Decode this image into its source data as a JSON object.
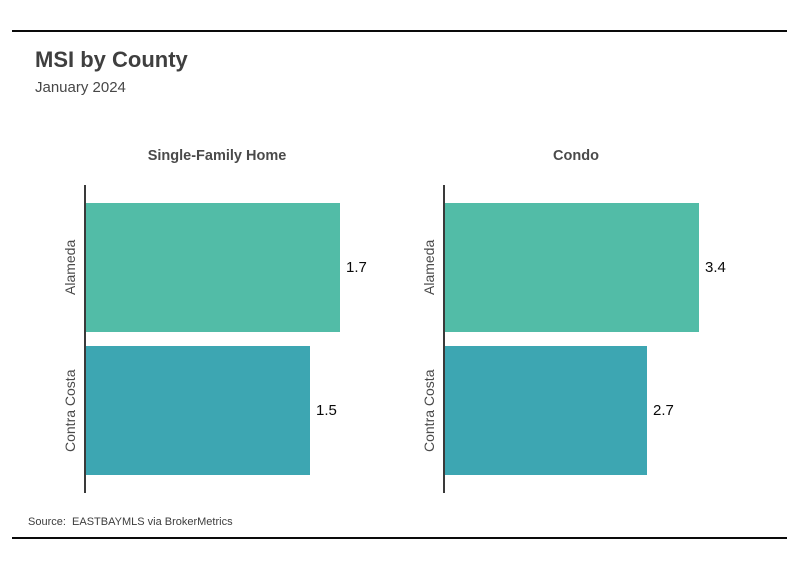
{
  "header": {
    "title": "MSI by County",
    "subtitle": "January 2024"
  },
  "footer": {
    "source": "Source:  EASTBAYMLS via BrokerMetrics"
  },
  "chart_data": {
    "type": "bar",
    "orientation": "horizontal",
    "title": "MSI by County",
    "subtitle": "January 2024",
    "facets": [
      {
        "title": "Single-Family Home",
        "categories": [
          "Alameda",
          "Contra Costa"
        ],
        "values": [
          1.7,
          1.5
        ]
      },
      {
        "title": "Condo",
        "categories": [
          "Alameda",
          "Contra Costa"
        ],
        "values": [
          3.4,
          2.7
        ]
      }
    ],
    "bar_colors": [
      "#52BCA7",
      "#3DA6B2"
    ],
    "value_labels_shown": true,
    "legend": "none",
    "grid": "off",
    "axis": {
      "y_axis_line": true,
      "x_ticks_shown": false,
      "x_scale": "free"
    },
    "source": "Source:  EASTBAYMLS via BrokerMetrics"
  },
  "colors": {
    "background": "#ffffff",
    "rule": "#0a0a0a",
    "title_text": "#3f3f3f",
    "subtitle_text": "#474747",
    "facet_title_text": "#4a4a4a",
    "axis_line": "#3a3a3a",
    "value_text": "#0a0a0a"
  }
}
